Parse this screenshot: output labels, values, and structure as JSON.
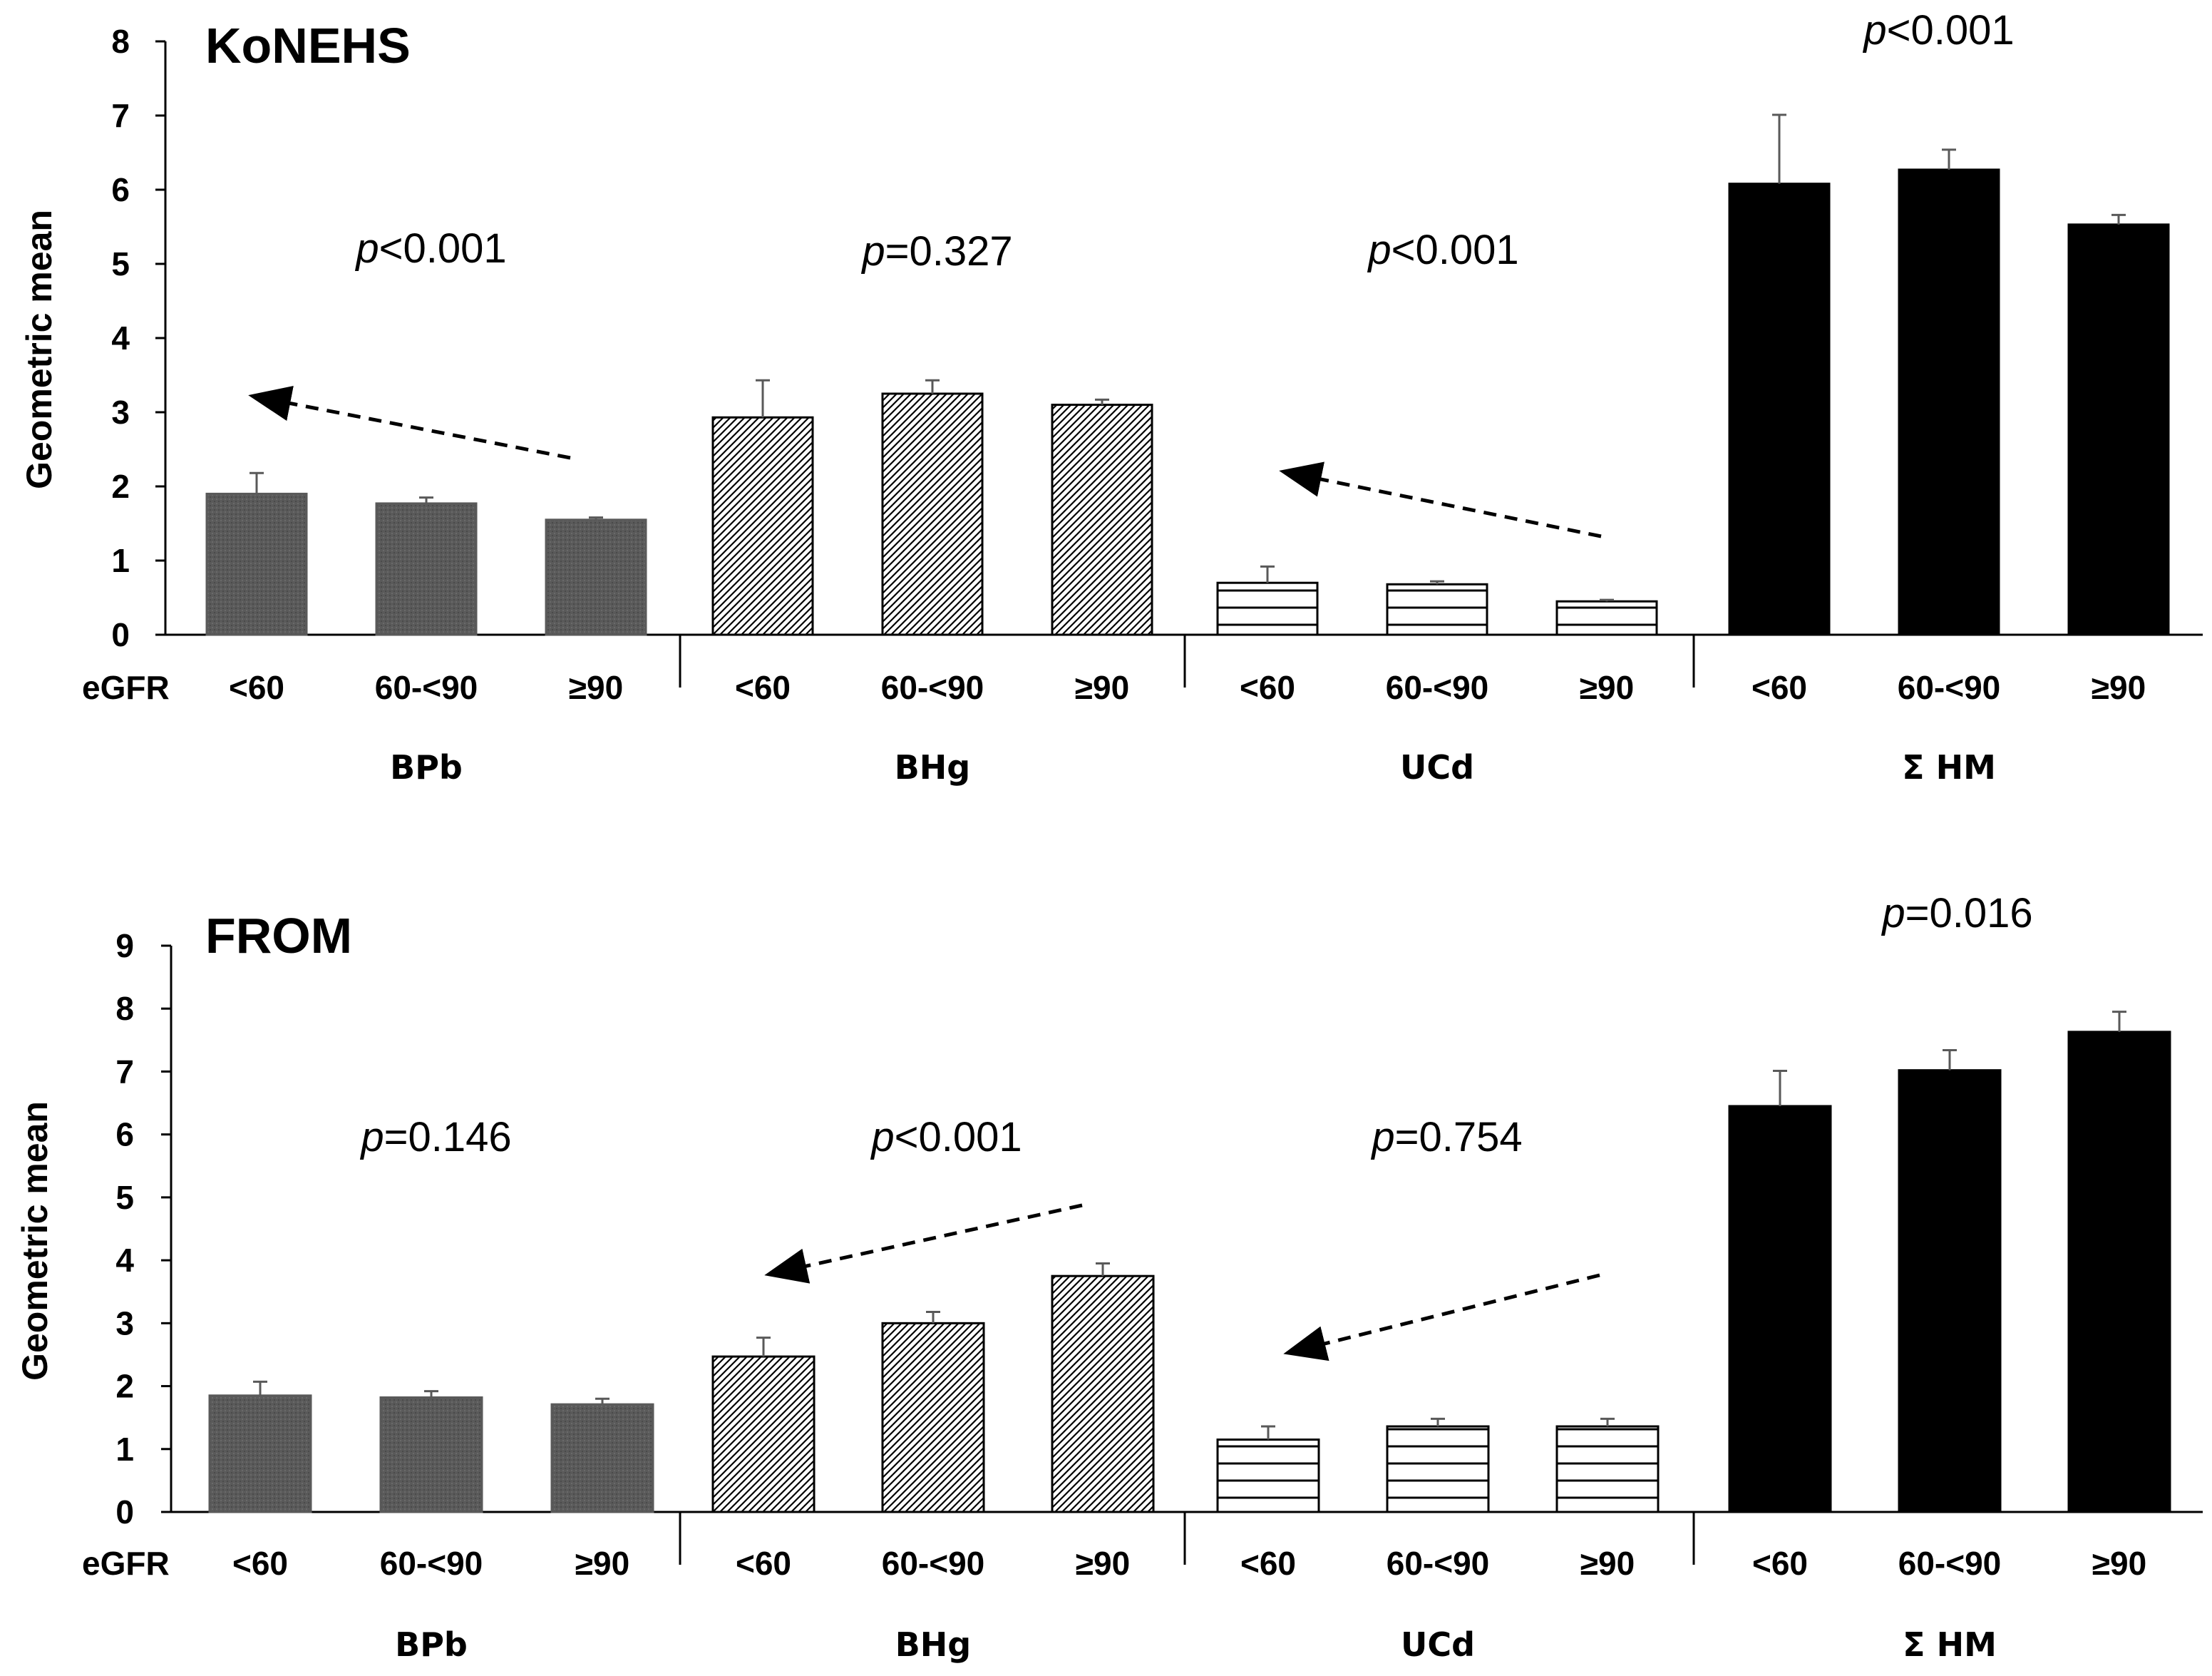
{
  "colors": {
    "BPb": "#595959",
    "BHg": "#ffffff",
    "UCd": "#ffffff",
    "HM": "#000000",
    "error": "#595959",
    "axis": "#000000"
  },
  "chart_data": [
    {
      "type": "bar",
      "title": "KoNEHS",
      "ylabel": "Geometric mean",
      "ylim": [
        0,
        8
      ],
      "yticks": [
        0,
        1,
        2,
        3,
        4,
        5,
        6,
        7,
        8
      ],
      "xlabel_prefix": "eGFR",
      "categories": [
        "<60",
        "60-<90",
        "≥90"
      ],
      "groups": [
        {
          "name": "BPb",
          "pattern": "solid-gray",
          "values": [
            1.9,
            1.77,
            1.55
          ],
          "errors": [
            0.28,
            0.08,
            0.03
          ],
          "p": {
            "italic": "p",
            "text": "<0.001"
          },
          "trend_arrow": true
        },
        {
          "name": "BHg",
          "pattern": "diagonal",
          "values": [
            2.93,
            3.25,
            3.1
          ],
          "errors": [
            0.5,
            0.18,
            0.07
          ],
          "p": {
            "italic": "p",
            "text": "=0.327"
          },
          "trend_arrow": false
        },
        {
          "name": "UCd",
          "pattern": "horizontal",
          "values": [
            0.7,
            0.68,
            0.45
          ],
          "errors": [
            0.22,
            0.04,
            0.02
          ],
          "p": {
            "italic": "p",
            "text": "<0.001"
          },
          "trend_arrow": true
        },
        {
          "name": "Σ HM",
          "pattern": "solid-black",
          "values": [
            6.08,
            6.27,
            5.53
          ],
          "errors": [
            0.93,
            0.27,
            0.13
          ],
          "p": {
            "italic": "p",
            "text": "<0.001"
          },
          "trend_arrow": false
        }
      ]
    },
    {
      "type": "bar",
      "title": "FROM",
      "ylabel": "Geometric mean",
      "ylim": [
        0,
        9
      ],
      "yticks": [
        0,
        1,
        2,
        3,
        4,
        5,
        6,
        7,
        8,
        9
      ],
      "xlabel_prefix": "eGFR",
      "categories": [
        "<60",
        "60-<90",
        "≥90"
      ],
      "groups": [
        {
          "name": "BPb",
          "pattern": "solid-gray",
          "values": [
            1.85,
            1.82,
            1.71
          ],
          "errors": [
            0.22,
            0.1,
            0.09
          ],
          "p": {
            "italic": "p",
            "text": "=0.146"
          },
          "trend_arrow": false
        },
        {
          "name": "BHg",
          "pattern": "diagonal",
          "values": [
            2.47,
            3.0,
            3.75
          ],
          "errors": [
            0.3,
            0.18,
            0.2
          ],
          "p": {
            "italic": "p",
            "text": "<0.001"
          },
          "trend_arrow": true
        },
        {
          "name": "UCd",
          "pattern": "horizontal",
          "values": [
            1.15,
            1.36,
            1.36
          ],
          "errors": [
            0.21,
            0.12,
            0.12
          ],
          "p": {
            "italic": "p",
            "text": "=0.754"
          },
          "trend_arrow": true
        },
        {
          "name": "Σ HM",
          "pattern": "solid-black",
          "values": [
            6.45,
            7.02,
            7.63
          ],
          "errors": [
            0.56,
            0.32,
            0.32
          ],
          "p": {
            "italic": "p",
            "text": "=0.016"
          },
          "trend_arrow": false
        }
      ]
    }
  ]
}
